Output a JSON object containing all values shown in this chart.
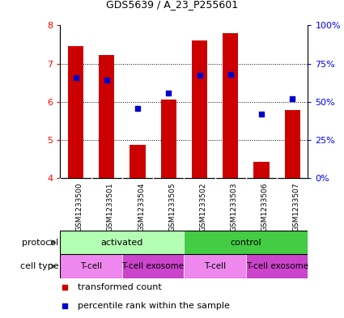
{
  "title": "GDS5639 / A_23_P255601",
  "samples": [
    "GSM1233500",
    "GSM1233501",
    "GSM1233504",
    "GSM1233505",
    "GSM1233502",
    "GSM1233503",
    "GSM1233506",
    "GSM1233507"
  ],
  "transformed_counts": [
    7.45,
    7.22,
    4.88,
    6.05,
    7.6,
    7.8,
    4.42,
    5.78
  ],
  "percentile_ranks": [
    6.63,
    6.57,
    5.83,
    6.22,
    6.7,
    6.72,
    5.67,
    6.07
  ],
  "ylim_left": [
    4,
    8
  ],
  "ylim_right": [
    0,
    100
  ],
  "bar_color": "#cc0000",
  "dot_color": "#0000cc",
  "bar_bottom": 4,
  "yticks_left": [
    4,
    5,
    6,
    7,
    8
  ],
  "yticks_right": [
    0,
    25,
    50,
    75,
    100
  ],
  "ytick_labels_right": [
    "0%",
    "25%",
    "50%",
    "75%",
    "100%"
  ],
  "protocol_groups": [
    {
      "label": "activated",
      "start": 0,
      "end": 4,
      "color": "#b3ffb3"
    },
    {
      "label": "control",
      "start": 4,
      "end": 8,
      "color": "#44cc44"
    }
  ],
  "cell_type_groups": [
    {
      "label": "T-cell",
      "start": 0,
      "end": 2,
      "color": "#ee88ee"
    },
    {
      "label": "T-cell exosome",
      "start": 2,
      "end": 4,
      "color": "#cc44cc"
    },
    {
      "label": "T-cell",
      "start": 4,
      "end": 6,
      "color": "#ee88ee"
    },
    {
      "label": "T-cell exosome",
      "start": 6,
      "end": 8,
      "color": "#cc44cc"
    }
  ],
  "plot_bg_color": "#ffffff",
  "sample_label_bg": "#c8c8c8",
  "bar_width": 0.5,
  "title_fontsize": 9,
  "tick_fontsize": 8,
  "label_fontsize": 8,
  "row_fontsize": 8,
  "legend_fontsize": 8
}
